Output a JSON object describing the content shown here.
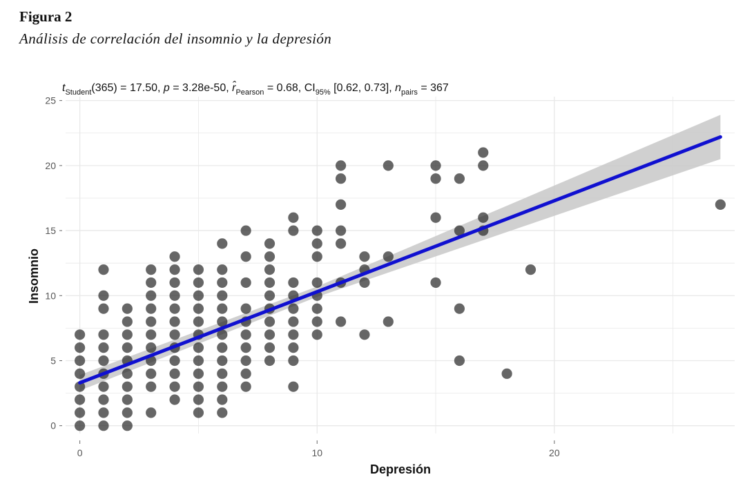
{
  "figure": {
    "label": "Figura 2",
    "caption": "Análisis de correlación del insomnio y la depresión"
  },
  "colors": {
    "fit_line": "#1010d0",
    "confidence_band": "#c8c8c8",
    "points": "#2b2b2b",
    "grid": "#e8e8e8"
  },
  "chart_data": {
    "type": "scatter",
    "title": "",
    "subtitle_parts": {
      "t_symbol": "t",
      "t_sub": "Student",
      "t_df": "(365)",
      "t_value": " = 17.50, ",
      "p_symbol": "p",
      "p_value": " = 3.28e-50, ",
      "r_symbol": "r̂",
      "r_sub": "Pearson",
      "r_value": " = 0.68, CI",
      "ci_sub": "95%",
      "ci_value": " [0.62, 0.73], ",
      "n_symbol": "n",
      "n_sub": "pairs",
      "n_value": " = 367"
    },
    "xlabel": "Depresión",
    "ylabel": "Insomnio",
    "xlim": [
      -0.6,
      27.6
    ],
    "ylim": [
      -0.6,
      25.3
    ],
    "x_ticks": [
      0,
      10,
      20
    ],
    "y_ticks": [
      0,
      5,
      10,
      15,
      20,
      25
    ],
    "grid": true,
    "legend": "none",
    "series": [
      {
        "type": "scatter",
        "points": [
          [
            0,
            0
          ],
          [
            0,
            1
          ],
          [
            0,
            2
          ],
          [
            0,
            3
          ],
          [
            0,
            4
          ],
          [
            0,
            5
          ],
          [
            0,
            6
          ],
          [
            0,
            7
          ],
          [
            1,
            0
          ],
          [
            1,
            1
          ],
          [
            1,
            2
          ],
          [
            1,
            3
          ],
          [
            1,
            4
          ],
          [
            1,
            5
          ],
          [
            1,
            6
          ],
          [
            1,
            7
          ],
          [
            1,
            9
          ],
          [
            1,
            10
          ],
          [
            1,
            12
          ],
          [
            2,
            0
          ],
          [
            2,
            1
          ],
          [
            2,
            2
          ],
          [
            2,
            3
          ],
          [
            2,
            4
          ],
          [
            2,
            5
          ],
          [
            2,
            6
          ],
          [
            2,
            7
          ],
          [
            2,
            8
          ],
          [
            2,
            9
          ],
          [
            3,
            1
          ],
          [
            3,
            3
          ],
          [
            3,
            4
          ],
          [
            3,
            5
          ],
          [
            3,
            6
          ],
          [
            3,
            7
          ],
          [
            3,
            8
          ],
          [
            3,
            9
          ],
          [
            3,
            10
          ],
          [
            3,
            11
          ],
          [
            3,
            12
          ],
          [
            4,
            2
          ],
          [
            4,
            3
          ],
          [
            4,
            4
          ],
          [
            4,
            5
          ],
          [
            4,
            6
          ],
          [
            4,
            7
          ],
          [
            4,
            8
          ],
          [
            4,
            9
          ],
          [
            4,
            10
          ],
          [
            4,
            11
          ],
          [
            4,
            12
          ],
          [
            4,
            13
          ],
          [
            5,
            1
          ],
          [
            5,
            2
          ],
          [
            5,
            3
          ],
          [
            5,
            4
          ],
          [
            5,
            5
          ],
          [
            5,
            6
          ],
          [
            5,
            7
          ],
          [
            5,
            8
          ],
          [
            5,
            9
          ],
          [
            5,
            10
          ],
          [
            5,
            11
          ],
          [
            5,
            12
          ],
          [
            6,
            1
          ],
          [
            6,
            2
          ],
          [
            6,
            3
          ],
          [
            6,
            4
          ],
          [
            6,
            5
          ],
          [
            6,
            6
          ],
          [
            6,
            7
          ],
          [
            6,
            8
          ],
          [
            6,
            9
          ],
          [
            6,
            10
          ],
          [
            6,
            11
          ],
          [
            6,
            12
          ],
          [
            6,
            14
          ],
          [
            7,
            3
          ],
          [
            7,
            4
          ],
          [
            7,
            5
          ],
          [
            7,
            6
          ],
          [
            7,
            7
          ],
          [
            7,
            8
          ],
          [
            7,
            9
          ],
          [
            7,
            11
          ],
          [
            7,
            13
          ],
          [
            7,
            15
          ],
          [
            8,
            5
          ],
          [
            8,
            6
          ],
          [
            8,
            7
          ],
          [
            8,
            8
          ],
          [
            8,
            9
          ],
          [
            8,
            10
          ],
          [
            8,
            11
          ],
          [
            8,
            12
          ],
          [
            8,
            13
          ],
          [
            8,
            14
          ],
          [
            9,
            3
          ],
          [
            9,
            5
          ],
          [
            9,
            6
          ],
          [
            9,
            7
          ],
          [
            9,
            8
          ],
          [
            9,
            9
          ],
          [
            9,
            10
          ],
          [
            9,
            11
          ],
          [
            9,
            15
          ],
          [
            9,
            16
          ],
          [
            10,
            7
          ],
          [
            10,
            8
          ],
          [
            10,
            9
          ],
          [
            10,
            10
          ],
          [
            10,
            11
          ],
          [
            10,
            13
          ],
          [
            10,
            14
          ],
          [
            10,
            15
          ],
          [
            11,
            8
          ],
          [
            11,
            11
          ],
          [
            11,
            14
          ],
          [
            11,
            15
          ],
          [
            11,
            17
          ],
          [
            11,
            19
          ],
          [
            11,
            20
          ],
          [
            12,
            7
          ],
          [
            12,
            11
          ],
          [
            12,
            12
          ],
          [
            12,
            13
          ],
          [
            13,
            8
          ],
          [
            13,
            13
          ],
          [
            13,
            20
          ],
          [
            15,
            11
          ],
          [
            15,
            16
          ],
          [
            15,
            19
          ],
          [
            15,
            20
          ],
          [
            16,
            5
          ],
          [
            16,
            9
          ],
          [
            16,
            15
          ],
          [
            16,
            19
          ],
          [
            17,
            15
          ],
          [
            17,
            16
          ],
          [
            17,
            20
          ],
          [
            17,
            21
          ],
          [
            18,
            4
          ],
          [
            19,
            12
          ],
          [
            27,
            17
          ]
        ]
      },
      {
        "type": "line",
        "x": [
          0,
          27
        ],
        "y": [
          3.3,
          22.2
        ]
      },
      {
        "type": "area",
        "x": [
          0,
          10,
          27
        ],
        "y_low": [
          2.7,
          9.9,
          20.5
        ],
        "y_high": [
          3.9,
          10.7,
          23.9
        ]
      }
    ]
  }
}
